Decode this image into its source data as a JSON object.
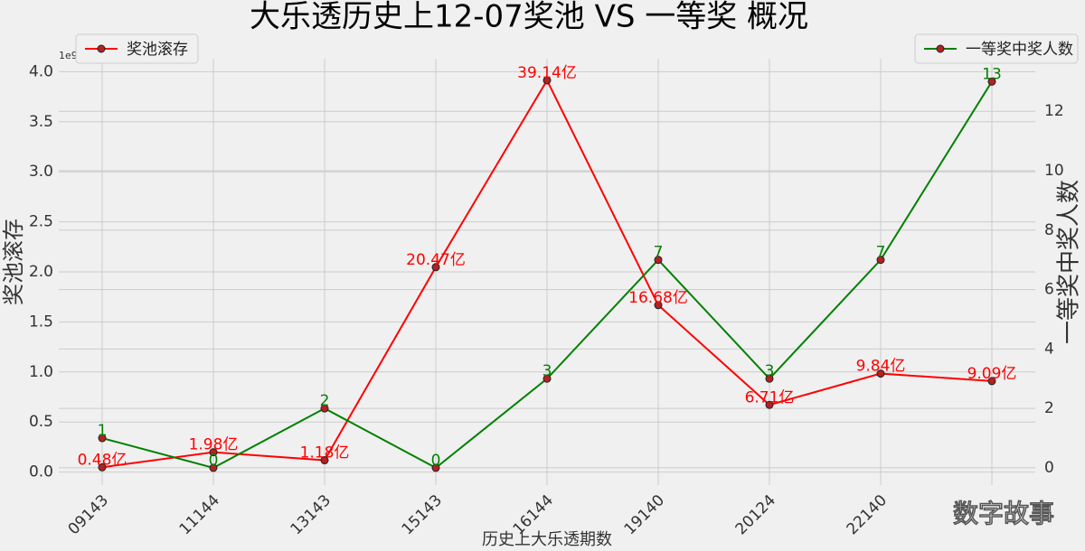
{
  "chart_data": {
    "type": "line",
    "title": "大乐透历史上12-07奖池 VS 一等奖 概况",
    "xlabel": "历史上大乐透期数",
    "ylabel": "奖池滚存",
    "y2label": "一等奖中奖人数",
    "y_offset_text": "1e9",
    "watermark": "数字故事",
    "categories": [
      "09143",
      "11144",
      "13143",
      "15143",
      "16144",
      "19140",
      "20124",
      "22140",
      null
    ],
    "series": [
      {
        "name": "奖池滚存",
        "color": "#ff0000",
        "axis": "y",
        "legend": "upper left",
        "values": [
          0.048,
          0.198,
          0.118,
          2.047,
          3.914,
          1.668,
          0.671,
          0.984,
          0.909
        ],
        "value_labels": [
          "0.48亿",
          "1.98亿",
          "1.18亿",
          "20.47亿",
          "39.14亿",
          "16.68亿",
          "6.71亿",
          "9.84亿",
          "9.09亿"
        ]
      },
      {
        "name": "一等奖中奖人数",
        "color": "#008000",
        "axis": "y2",
        "legend": "upper right",
        "values": [
          1,
          0,
          2,
          0,
          3,
          7,
          3,
          7,
          13
        ]
      }
    ],
    "ylim": [
      -0.13,
      4.13
    ],
    "yticks": [
      {
        "value": 0,
        "label": "0.0"
      },
      {
        "value": 0.5,
        "label": "0.5"
      },
      {
        "value": 1,
        "label": "1.0"
      },
      {
        "value": 1.5,
        "label": "1.5"
      },
      {
        "value": 2,
        "label": "2.0"
      },
      {
        "value": 2.5,
        "label": "2.5"
      },
      {
        "value": 3,
        "label": "3.0"
      },
      {
        "value": 3.5,
        "label": "3.5"
      },
      {
        "value": 4,
        "label": "4.0"
      }
    ],
    "y2lim": [
      -0.58,
      13.77
    ],
    "y2ticks": [
      0,
      2,
      4,
      6,
      8,
      10,
      12
    ],
    "grid": true
  }
}
